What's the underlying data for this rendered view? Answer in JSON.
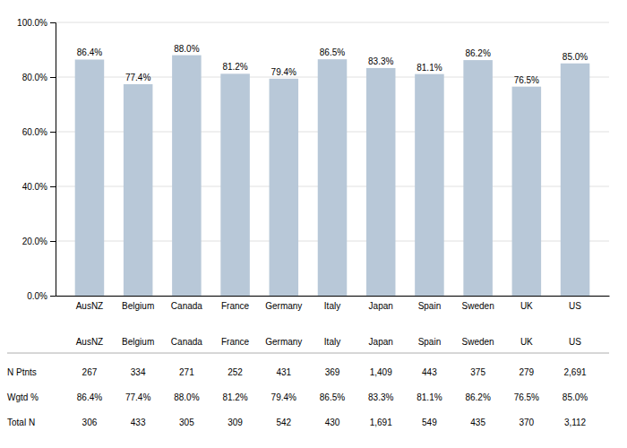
{
  "chart_data": {
    "type": "bar",
    "categories": [
      "AusNZ",
      "Belgium",
      "Canada",
      "France",
      "Germany",
      "Italy",
      "Japan",
      "Spain",
      "Sweden",
      "UK",
      "US"
    ],
    "values": [
      86.4,
      77.4,
      88.0,
      81.2,
      79.4,
      86.5,
      83.3,
      81.1,
      86.2,
      76.5,
      85.0
    ],
    "value_labels": [
      "86.4%",
      "77.4%",
      "88.0%",
      "81.2%",
      "79.4%",
      "86.5%",
      "83.3%",
      "81.1%",
      "86.2%",
      "76.5%",
      "85.0%"
    ],
    "data_labels": true,
    "color": "#b8c8d8",
    "ylim": [
      0,
      100
    ],
    "yticks": [
      {
        "value": 0,
        "label": "0.0%"
      },
      {
        "value": 20,
        "label": "20.0%"
      },
      {
        "value": 40,
        "label": "40.0%"
      },
      {
        "value": 60,
        "label": "60.0%"
      },
      {
        "value": 80,
        "label": "80.0%"
      },
      {
        "value": 100,
        "label": "100.0%"
      }
    ],
    "grid": true,
    "table": {
      "rows": [
        {
          "label": "N Ptnts",
          "cells": [
            "267",
            "334",
            "271",
            "252",
            "431",
            "369",
            "1,409",
            "443",
            "375",
            "279",
            "2,691"
          ]
        },
        {
          "label": "Wgtd %",
          "cells": [
            "86.4%",
            "77.4%",
            "88.0%",
            "81.2%",
            "79.4%",
            "86.5%",
            "83.3%",
            "81.1%",
            "86.2%",
            "76.5%",
            "85.0%"
          ]
        },
        {
          "label": "Total N",
          "cells": [
            "306",
            "433",
            "305",
            "309",
            "542",
            "430",
            "1,691",
            "549",
            "435",
            "370",
            "3,112"
          ]
        }
      ]
    }
  }
}
